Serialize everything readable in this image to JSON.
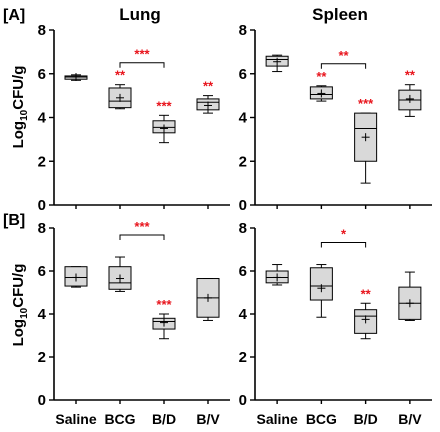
{
  "colors": {
    "box_fill": "#d9d9d9",
    "significance": "#e8141c",
    "axis": "#000000"
  },
  "figure": {
    "ylabel": "Log₁₀CFU/g",
    "ylabel_base": "Log",
    "ylabel_sub": "10",
    "ylabel_rest": "CFU/g",
    "row_tags": [
      "[A]",
      "[B]"
    ]
  },
  "chart_data": [
    {
      "type": "box",
      "panel": "A-left",
      "tag": "[A]",
      "title": "Lung",
      "categories": [
        "Saline",
        "BCG",
        "B/D",
        "B/V"
      ],
      "ylim": [
        0,
        8
      ],
      "yticks": [
        0,
        2,
        4,
        6,
        8
      ],
      "boxes": [
        {
          "min": 5.7,
          "q1": 5.75,
          "median": 5.85,
          "q3": 5.9,
          "max": 5.95,
          "mean": 5.85
        },
        {
          "min": 4.4,
          "q1": 4.45,
          "median": 4.75,
          "q3": 5.35,
          "max": 5.5,
          "mean": 4.9
        },
        {
          "min": 2.85,
          "q1": 3.3,
          "median": 3.55,
          "q3": 3.85,
          "max": 4.1,
          "mean": 3.5
        },
        {
          "min": 4.2,
          "q1": 4.35,
          "median": 4.7,
          "q3": 4.85,
          "max": 5.0,
          "mean": 4.55
        }
      ],
      "stars": [
        {
          "index": 1,
          "label": "**"
        },
        {
          "index": 2,
          "label": "***"
        },
        {
          "index": 3,
          "label": "**"
        }
      ],
      "brackets": [
        {
          "from": 1,
          "to": 2,
          "label": "***"
        }
      ]
    },
    {
      "type": "box",
      "panel": "A-right",
      "title": "Spleen",
      "categories": [
        "Saline",
        "BCG",
        "B/D",
        "B/V"
      ],
      "ylim": [
        0,
        8
      ],
      "yticks": [
        0,
        2,
        4,
        6,
        8
      ],
      "boxes": [
        {
          "min": 6.1,
          "q1": 6.35,
          "median": 6.65,
          "q3": 6.8,
          "max": 6.85,
          "mean": 6.55
        },
        {
          "min": 4.75,
          "q1": 4.85,
          "median": 5.05,
          "q3": 5.4,
          "max": 5.45,
          "mean": 5.1
        },
        {
          "min": 1.0,
          "q1": 2.0,
          "median": 3.5,
          "q3": 4.2,
          "max": 4.2,
          "mean": 3.1
        },
        {
          "min": 4.05,
          "q1": 4.35,
          "median": 4.8,
          "q3": 5.25,
          "max": 5.5,
          "mean": 4.85
        }
      ],
      "stars": [
        {
          "index": 1,
          "label": "**"
        },
        {
          "index": 2,
          "label": "***"
        },
        {
          "index": 3,
          "label": "**"
        }
      ],
      "brackets": [
        {
          "from": 1,
          "to": 2,
          "label": "**"
        }
      ]
    },
    {
      "type": "box",
      "panel": "B-left",
      "tag": "[B]",
      "categories": [
        "Saline",
        "BCG",
        "B/D",
        "B/V"
      ],
      "ylim": [
        0,
        8
      ],
      "yticks": [
        0,
        2,
        4,
        6,
        8
      ],
      "boxes": [
        {
          "min": 5.25,
          "q1": 5.3,
          "median": 5.7,
          "q3": 6.2,
          "max": 6.2,
          "mean": 5.7
        },
        {
          "min": 5.05,
          "q1": 5.15,
          "median": 5.45,
          "q3": 6.2,
          "max": 6.65,
          "mean": 5.65
        },
        {
          "min": 2.85,
          "q1": 3.3,
          "median": 3.65,
          "q3": 3.8,
          "max": 4.0,
          "mean": 3.6
        },
        {
          "min": 3.7,
          "q1": 3.85,
          "median": 4.75,
          "q3": 5.65,
          "max": 5.65,
          "mean": 4.75
        }
      ],
      "stars": [
        {
          "index": 2,
          "label": "***"
        }
      ],
      "brackets": [
        {
          "from": 1,
          "to": 2,
          "label": "***"
        }
      ]
    },
    {
      "type": "box",
      "panel": "B-right",
      "categories": [
        "Saline",
        "BCG",
        "B/D",
        "B/V"
      ],
      "ylim": [
        0,
        8
      ],
      "yticks": [
        0,
        2,
        4,
        6,
        8
      ],
      "boxes": [
        {
          "min": 5.35,
          "q1": 5.45,
          "median": 5.7,
          "q3": 6.0,
          "max": 6.3,
          "mean": 5.7
        },
        {
          "min": 3.85,
          "q1": 4.65,
          "median": 5.3,
          "q3": 6.15,
          "max": 6.3,
          "mean": 5.2
        },
        {
          "min": 2.85,
          "q1": 3.1,
          "median": 3.9,
          "q3": 4.2,
          "max": 4.5,
          "mean": 3.75
        },
        {
          "min": 3.7,
          "q1": 3.75,
          "median": 4.5,
          "q3": 5.25,
          "max": 5.95,
          "mean": 4.5
        }
      ],
      "stars": [
        {
          "index": 2,
          "label": "**"
        }
      ],
      "brackets": [
        {
          "from": 1,
          "to": 2,
          "label": "*"
        }
      ]
    }
  ]
}
